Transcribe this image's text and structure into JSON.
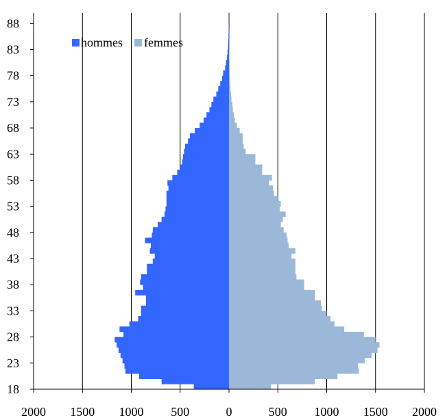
{
  "chart_data": {
    "type": "bar",
    "orientation": "horizontal-pyramid",
    "title": "",
    "xlabel": "",
    "ylabel": "",
    "xlim": [
      -2000,
      2000
    ],
    "x_tick_values": [
      -2000,
      -1500,
      -1000,
      -500,
      0,
      500,
      1000,
      1500,
      2000
    ],
    "x_tick_labels": [
      "2000",
      "1500",
      "1000",
      "500",
      "0",
      "500",
      "1000",
      "1500",
      "2000"
    ],
    "ylim": [
      18,
      90
    ],
    "y_tick_values": [
      18,
      23,
      28,
      33,
      38,
      43,
      48,
      53,
      58,
      63,
      68,
      73,
      78,
      83,
      88
    ],
    "y_tick_labels": [
      "18",
      "23",
      "28",
      "33",
      "38",
      "43",
      "48",
      "53",
      "58",
      "63",
      "68",
      "73",
      "78",
      "83",
      "88"
    ],
    "grid": "vertical",
    "legend_position": "top-left",
    "ages": [
      18,
      19,
      20,
      21,
      22,
      23,
      24,
      25,
      26,
      27,
      28,
      29,
      30,
      31,
      32,
      33,
      34,
      35,
      36,
      37,
      38,
      39,
      40,
      41,
      42,
      43,
      44,
      45,
      46,
      47,
      48,
      49,
      50,
      51,
      52,
      53,
      54,
      55,
      56,
      57,
      58,
      59,
      60,
      61,
      62,
      63,
      64,
      65,
      66,
      67,
      68,
      69,
      70,
      71,
      72,
      73,
      74,
      75,
      76,
      77,
      78,
      79,
      80,
      81,
      82,
      83,
      84,
      85,
      86,
      87,
      88,
      89
    ],
    "series": [
      {
        "name": "hommes",
        "color": "#3366ff",
        "values": [
          360,
          690,
          920,
          1060,
          1070,
          1090,
          1110,
          1130,
          1150,
          1170,
          1080,
          1120,
          1020,
          930,
          900,
          900,
          850,
          850,
          960,
          880,
          910,
          900,
          840,
          840,
          780,
          760,
          810,
          800,
          860,
          790,
          780,
          730,
          690,
          660,
          650,
          640,
          640,
          640,
          620,
          630,
          580,
          530,
          500,
          480,
          470,
          460,
          450,
          420,
          400,
          350,
          300,
          260,
          230,
          200,
          180,
          160,
          130,
          110,
          90,
          70,
          60,
          40,
          30,
          20,
          15,
          10,
          8,
          5,
          4,
          3,
          2,
          1
        ]
      },
      {
        "name": "femmes",
        "color": "#9bb8d9",
        "values": [
          430,
          880,
          1110,
          1330,
          1320,
          1390,
          1460,
          1520,
          1540,
          1500,
          1380,
          1180,
          1080,
          1040,
          1000,
          950,
          940,
          880,
          880,
          770,
          770,
          690,
          680,
          680,
          680,
          640,
          680,
          610,
          600,
          590,
          560,
          530,
          550,
          580,
          520,
          530,
          500,
          460,
          450,
          410,
          440,
          340,
          340,
          270,
          270,
          170,
          150,
          140,
          140,
          110,
          80,
          60,
          50,
          40,
          35,
          25,
          20,
          15,
          12,
          10,
          8,
          6,
          5,
          4,
          3,
          2,
          2,
          1,
          1,
          0,
          0,
          0
        ]
      }
    ]
  }
}
